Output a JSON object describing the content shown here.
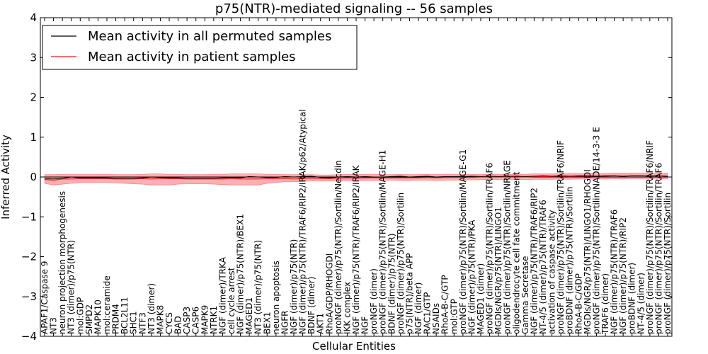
{
  "chart_data": {
    "type": "line",
    "title": "p75(NTR)-mediated signaling -- 56 samples",
    "xlabel": "Cellular Entities",
    "ylabel": "Inferred Activity",
    "ylim": [
      -4,
      4
    ],
    "yticks": [
      -4,
      -3,
      -2,
      -1,
      0,
      1,
      2,
      3,
      4
    ],
    "ytick_labels": [
      "−4",
      "−3",
      "−2",
      "−1",
      "0",
      "1",
      "2",
      "3",
      "4"
    ],
    "grid": false,
    "legend": {
      "placement": "top-left",
      "entries": [
        {
          "label": "Mean activity in all permuted samples",
          "color": "#000000"
        },
        {
          "label": "Mean activity in patient samples",
          "color": "#e31a1c"
        }
      ]
    },
    "band_color": "#ff6060",
    "categories": [
      "APAF1/Caspase 9",
      "NT3",
      "neuron projection morphogenesis",
      "NT3 (dimer)/p75(NTR)",
      "mol:GDP",
      "SMPD2",
      "MAPK10",
      "mol:ceramide",
      "PRDM4",
      "BCL2L11",
      "SHC1",
      "NTF3",
      "NT3 (dimer)",
      "MAPK8",
      "CYCS",
      "BAD",
      "CASP3",
      "CASP6",
      "MAPK9",
      "NTRK1",
      "NGF (dimer)/TRKA",
      "cell cycle arrest",
      "NGF (dimer)/p75(NTR)/BEX1",
      "MAGED1",
      "NT3 (dimer)/p75(NTR)",
      "BEX1",
      "neuron apoptosis",
      "NGFR",
      "NGF (dimer)/p75(NTR)",
      "NGF (dimer)/p75(NTR)/TRAF6/RIP2/IRAK/p62/Atypical",
      "BDNF (dimer)",
      "AKT1",
      "RhoA/GDP/RHOGDI",
      "proNGF (dimer)/p75(NTR)/Sortilin/Necdin",
      "IKK complex",
      "NGF (dimer)/p75(NTR)/TRAF6/RIP2/IRAK",
      "NGF",
      "proNGF (dimer)",
      "proNGF (dimer)/p75(NTR)/Sortilin/MAGE-H1",
      "BDNF (dimer)/p75(NTR)",
      "proNGF (dimer)/p75(NTR)/Sortilin",
      "p75(NTR)/beta APP",
      "NGF (dimer)",
      "RAC1/GTP",
      "NSAIDs",
      "RhoA-B-C/GTP",
      "mol:GTP",
      "proNGF (dimer)/p75(NTR)/Sortilin/MAGE-G1",
      "NGF (dimer)/p75(NTR)/PKA",
      "MAGED1 (dimer)",
      "proNGF (dimer)/p75(NTR)/Sortilin/TRAF6",
      "MGDIs/NGR/p75(NTR)/LINGO1",
      "proNGF (dimer)/p75(NTR)/Sortilin/NRAGE",
      "oligodendrocyte cell fate commitment",
      "Gamma Secretase",
      "NGF (dimer)/p75(NTR)/TRAF6/RIP2",
      "NT-4/5 (dimer)/p75(NTR)/TRAF6",
      "activation of caspase activity",
      "proNGF (dimer)/p75(NTR)/Sortilin/TRAF6/NRIF",
      "proBDNF (dimer)/p75(NTR)/Sortilin",
      "RhoA-B-C/GDP",
      "MGDIs/NGR/p75(NTR)/LINGO1/RHOGDI",
      "proNGF (dimer)/p75(NTR)/Sortilin/NADE/14-3-3 E",
      "TRAF6 (dimer)",
      "NGF (dimer)/p75(NTR)/TRAF6",
      "NGF (dimer)/p75(NTR)/RIP2",
      "proBDNF (dimer)",
      "NT-4/5 (dimer)",
      "proNGF (dimer)/p75(NTR)/Sortilin/TRAF6/NRIF",
      "proNGF (dimer)/p75(NTR)/Sortilin/TRAF6",
      "proNGF (dimer)/p75(NTR)/Sortilin"
    ],
    "series": [
      {
        "name": "Mean activity in all permuted samples",
        "color": "#000000",
        "values": [
          -0.04,
          -0.05,
          -0.03,
          0.0,
          -0.02,
          -0.02,
          -0.02,
          -0.02,
          -0.03,
          -0.03,
          -0.03,
          -0.02,
          0.0,
          -0.01,
          -0.02,
          -0.02,
          -0.03,
          -0.03,
          -0.03,
          -0.03,
          -0.02,
          -0.01,
          -0.02,
          0.01,
          0.0,
          -0.01,
          -0.01,
          0.01,
          0.0,
          0.01,
          0.02,
          -0.01,
          -0.02,
          0.0,
          0.01,
          0.0,
          0.01,
          0.0,
          0.0,
          0.01,
          0.02,
          0.0,
          0.01,
          0.02,
          0.0,
          0.01,
          0.01,
          0.01,
          0.02,
          0.01,
          0.02,
          0.01,
          0.02,
          0.02,
          0.01,
          0.02,
          0.03,
          0.02,
          0.03,
          0.02,
          0.03,
          0.03,
          0.02,
          0.03,
          0.03,
          0.02,
          0.03,
          0.03,
          0.02,
          0.03,
          0.02
        ]
      },
      {
        "name": "Mean activity in patient samples",
        "color": "#e31a1c",
        "values": [
          -0.06,
          -0.08,
          -0.05,
          -0.05,
          -0.04,
          -0.04,
          -0.04,
          -0.04,
          -0.05,
          -0.05,
          -0.05,
          -0.04,
          -0.05,
          -0.04,
          -0.04,
          -0.04,
          -0.05,
          -0.05,
          -0.05,
          -0.05,
          -0.05,
          -0.04,
          -0.05,
          -0.05,
          -0.05,
          -0.04,
          -0.04,
          -0.04,
          -0.05,
          -0.04,
          -0.03,
          -0.04,
          -0.04,
          -0.03,
          -0.02,
          -0.03,
          -0.02,
          -0.02,
          -0.02,
          -0.02,
          -0.02,
          -0.02,
          -0.02,
          -0.01,
          -0.02,
          -0.01,
          -0.01,
          -0.01,
          -0.01,
          0.0,
          0.0,
          0.0,
          0.0,
          0.01,
          0.0,
          0.01,
          0.01,
          0.01,
          0.02,
          0.01,
          0.02,
          0.02,
          0.02,
          0.02,
          0.03,
          0.02,
          0.03,
          0.03,
          0.03,
          0.03,
          0.02
        ],
        "band_lower": [
          -0.16,
          -0.2,
          -0.18,
          -0.16,
          -0.14,
          -0.14,
          -0.14,
          -0.14,
          -0.15,
          -0.16,
          -0.17,
          -0.18,
          -0.2,
          -0.2,
          -0.2,
          -0.18,
          -0.17,
          -0.17,
          -0.17,
          -0.18,
          -0.19,
          -0.2,
          -0.2,
          -0.2,
          -0.2,
          -0.16,
          -0.14,
          -0.12,
          -0.12,
          -0.11,
          -0.1,
          -0.1,
          -0.1,
          -0.1,
          -0.09,
          -0.09,
          -0.09,
          -0.09,
          -0.08,
          -0.08,
          -0.09,
          -0.09,
          -0.08,
          -0.08,
          -0.09,
          -0.08,
          -0.08,
          -0.08,
          -0.07,
          -0.07,
          -0.07,
          -0.07,
          -0.07,
          -0.06,
          -0.07,
          -0.06,
          -0.06,
          -0.06,
          -0.05,
          -0.06,
          -0.05,
          -0.05,
          -0.05,
          -0.05,
          -0.04,
          -0.05,
          -0.04,
          -0.04,
          -0.04,
          -0.04,
          -0.05
        ],
        "band_upper": [
          0.06,
          0.06,
          0.07,
          0.07,
          0.07,
          0.07,
          0.07,
          0.07,
          0.06,
          0.06,
          0.06,
          0.07,
          0.08,
          0.08,
          0.07,
          0.07,
          0.06,
          0.06,
          0.06,
          0.07,
          0.07,
          0.08,
          0.08,
          0.08,
          0.08,
          0.07,
          0.07,
          0.06,
          0.06,
          0.06,
          0.06,
          0.05,
          0.05,
          0.06,
          0.07,
          0.06,
          0.07,
          0.07,
          0.06,
          0.06,
          0.07,
          0.06,
          0.06,
          0.07,
          0.06,
          0.07,
          0.07,
          0.07,
          0.07,
          0.07,
          0.07,
          0.07,
          0.07,
          0.08,
          0.07,
          0.08,
          0.08,
          0.08,
          0.09,
          0.09,
          0.09,
          0.09,
          0.09,
          0.09,
          0.1,
          0.1,
          0.1,
          0.1,
          0.1,
          0.1,
          0.1
        ]
      }
    ]
  }
}
